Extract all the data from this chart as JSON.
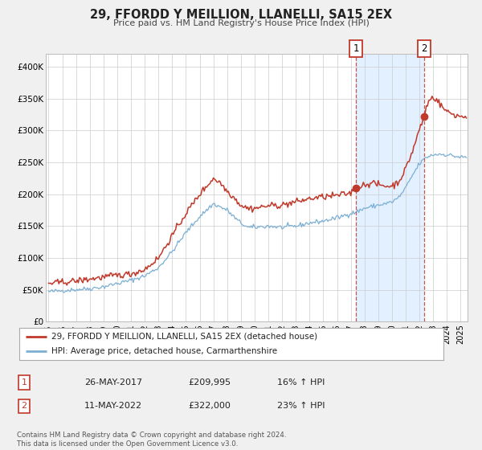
{
  "title": "29, FFORDD Y MEILLION, LLANELLI, SA15 2EX",
  "subtitle": "Price paid vs. HM Land Registry's House Price Index (HPI)",
  "red_label": "29, FFORDD Y MEILLION, LLANELLI, SA15 2EX (detached house)",
  "blue_label": "HPI: Average price, detached house, Carmarthenshire",
  "ann1_num": "1",
  "ann1_date": "26-MAY-2017",
  "ann1_price": "£209,995",
  "ann1_hpi": "16% ↑ HPI",
  "ann1_x": 2017.38,
  "ann1_y": 209995,
  "ann2_num": "2",
  "ann2_date": "11-MAY-2022",
  "ann2_price": "£322,000",
  "ann2_hpi": "23% ↑ HPI",
  "ann2_x": 2022.36,
  "ann2_y": 322000,
  "footer1": "Contains HM Land Registry data © Crown copyright and database right 2024.",
  "footer2": "This data is licensed under the Open Government Licence v3.0.",
  "red_color": "#c0392b",
  "blue_color": "#7bafd4",
  "shade_color": "#ddeeff",
  "background_color": "#f0f0f0",
  "plot_bg_color": "#ffffff",
  "ylim": [
    0,
    420000
  ],
  "xlim": [
    1994.8,
    2025.5
  ],
  "yticks": [
    0,
    50000,
    100000,
    150000,
    200000,
    250000,
    300000,
    350000,
    400000
  ],
  "ytick_labels": [
    "£0",
    "£50K",
    "£100K",
    "£150K",
    "£200K",
    "£250K",
    "£300K",
    "£350K",
    "£400K"
  ]
}
